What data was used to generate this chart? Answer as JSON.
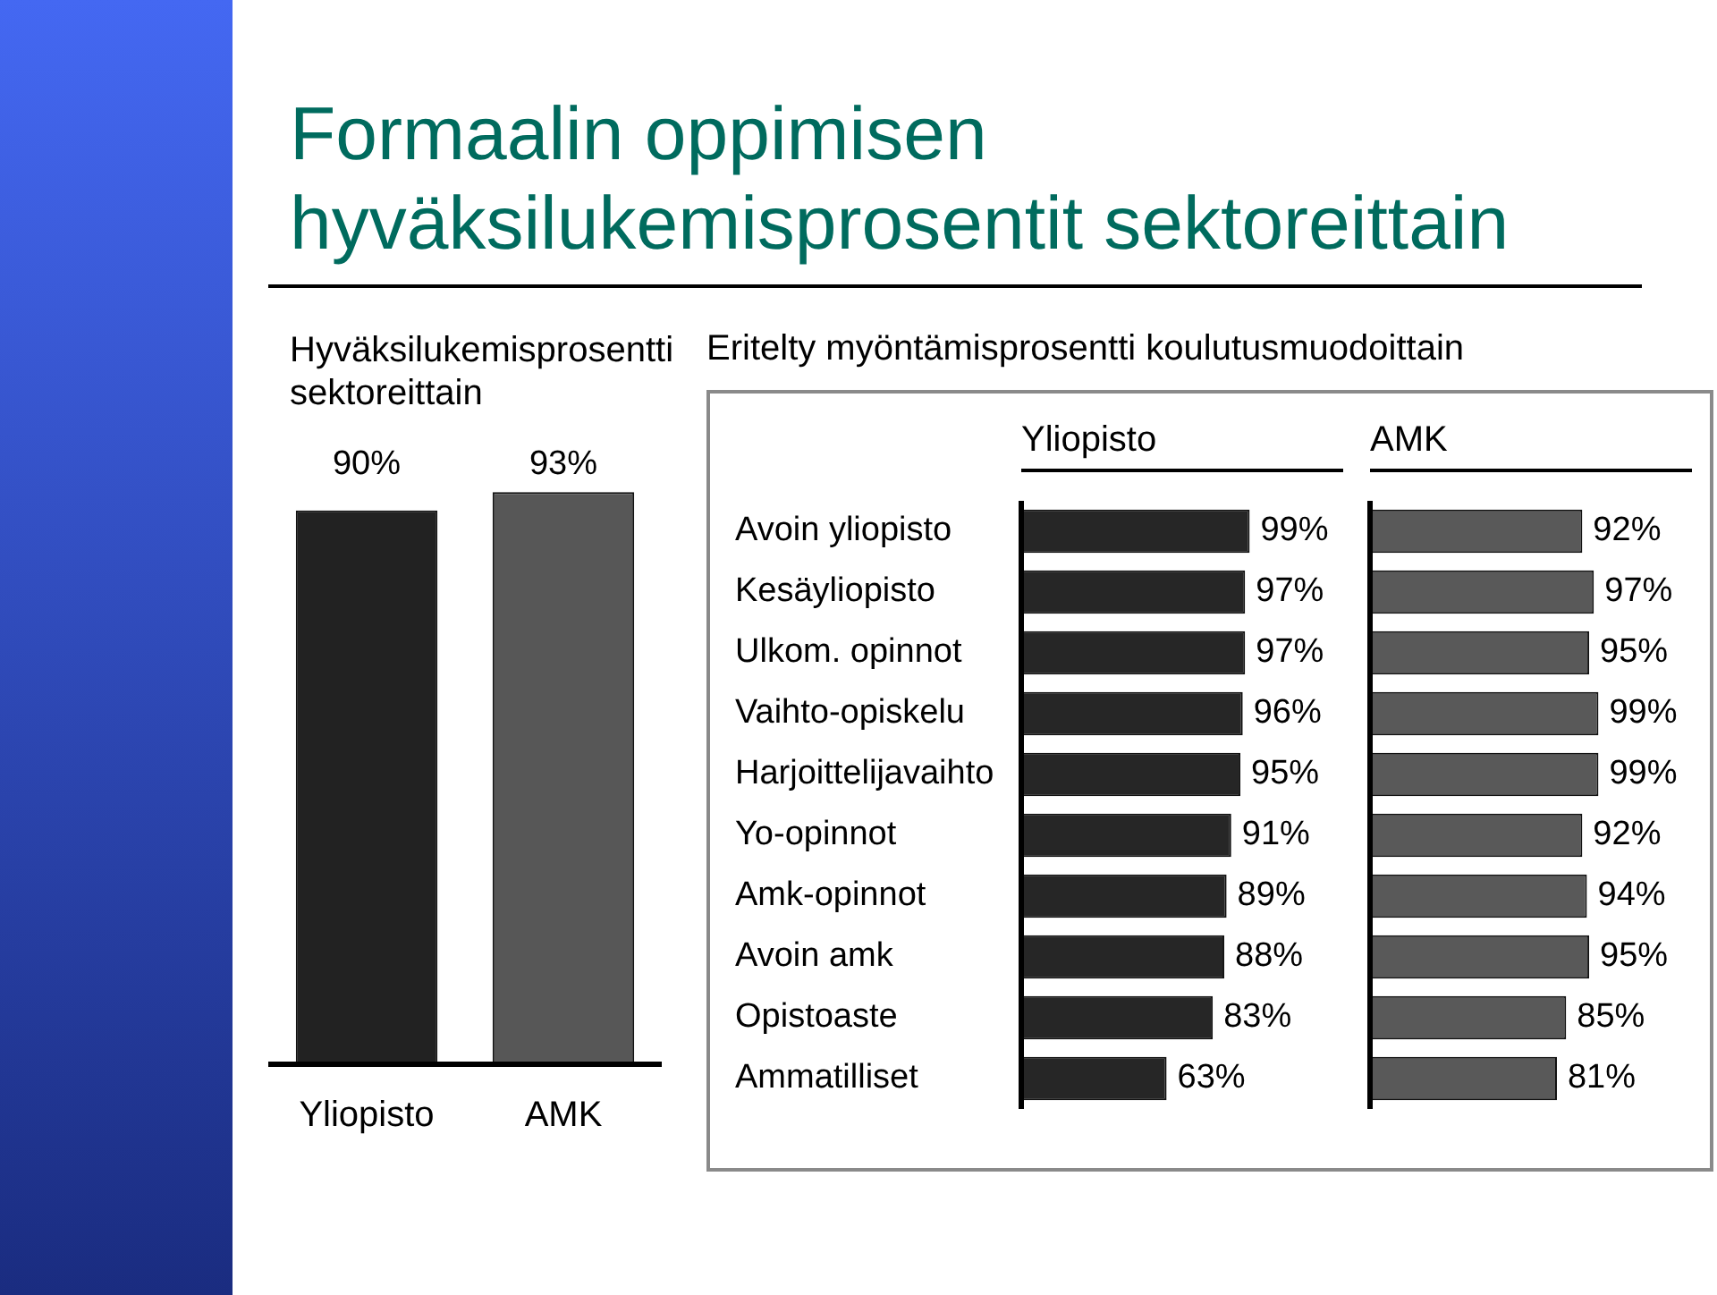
{
  "chart_data": [
    {
      "type": "bar",
      "title": "Formaalin oppimisen hyväksilukemisprosentit sektoreittain",
      "subtitle": "Hyväksilukemisprosentti sektoreittain",
      "categories": [
        "Yliopisto",
        "AMK"
      ],
      "values": [
        90,
        93
      ],
      "colors": [
        "#222222",
        "#575757"
      ],
      "value_labels": [
        "90%",
        "93%"
      ],
      "tick_labels": "x"
    },
    {
      "type": "bar",
      "orientation": "horizontal",
      "title": "Eritelty myöntämisprosentti koulutusmuodoittain",
      "subtitle": "Yliopisto",
      "categories": [
        "Avoin yliopisto",
        "Kesäyliopisto",
        "Ulkom. opinnot",
        "Vaihto-opiskelu",
        "Harjoittelijavaihto",
        "Yo-opinnot",
        "Amk-opinnot",
        "Avoin amk",
        "Opistoaste",
        "Ammatilliset"
      ],
      "values": [
        99,
        97,
        97,
        96,
        95,
        91,
        89,
        88,
        83,
        63
      ],
      "color": "#262626",
      "value_labels": [
        "99%",
        "97%",
        "97%",
        "96%",
        "95%",
        "91%",
        "89%",
        "88%",
        "83%",
        "63%"
      ],
      "tick_labels": "y"
    },
    {
      "type": "bar",
      "orientation": "horizontal",
      "title": "AMK",
      "categories": [
        null,
        null,
        null,
        null,
        null,
        null,
        null,
        null,
        null,
        null
      ],
      "values": [
        92,
        97,
        95,
        99,
        99,
        92,
        94,
        95,
        85,
        81
      ],
      "color": "#595959",
      "value_labels": [
        "92%",
        "97%",
        "95%",
        "99%",
        "99%",
        "92%",
        "94%",
        "95%",
        "85%",
        "81%"
      ],
      "tick_labels": false
    }
  ]
}
